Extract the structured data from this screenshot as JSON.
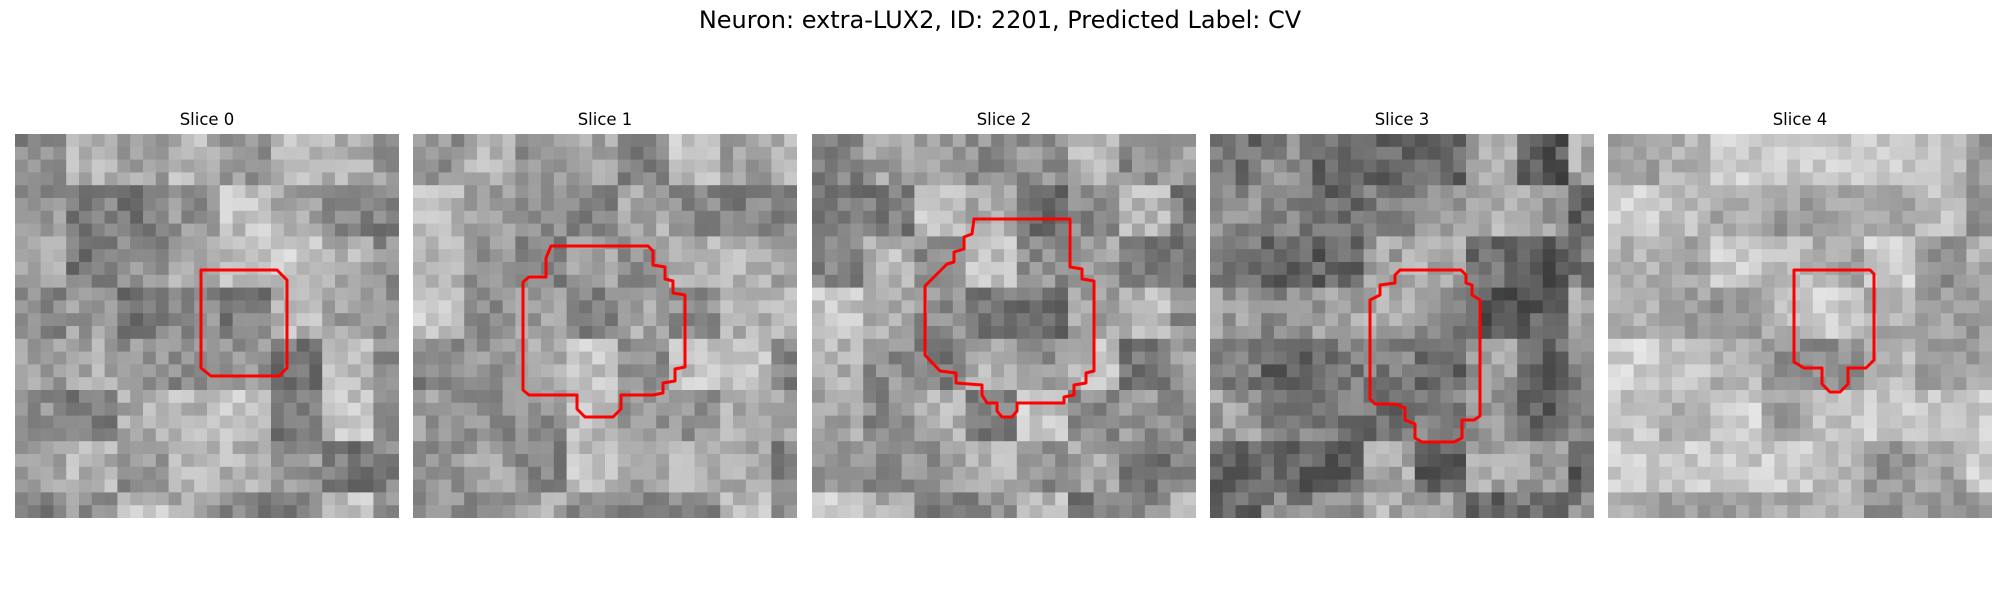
{
  "figure": {
    "title": "Neuron: extra-LUX2, ID: 2201, Predicted Label: CV",
    "contour_color": "#ff0000",
    "slices": [
      {
        "title": "Slice 0",
        "seed": 11,
        "mean": 160,
        "contrast": 55
      },
      {
        "title": "Slice 1",
        "seed": 23,
        "mean": 165,
        "contrast": 50
      },
      {
        "title": "Slice 2",
        "seed": 37,
        "mean": 155,
        "contrast": 55
      },
      {
        "title": "Slice 3",
        "seed": 49,
        "mean": 135,
        "contrast": 60
      },
      {
        "title": "Slice 4",
        "seed": 61,
        "mean": 175,
        "contrast": 45
      }
    ]
  }
}
